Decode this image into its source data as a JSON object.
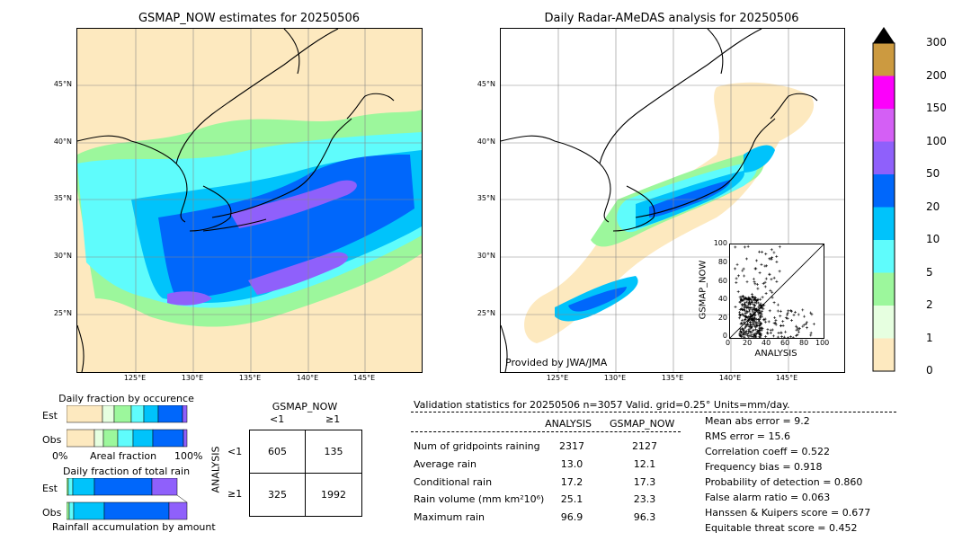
{
  "left_map": {
    "title": "GSMAP_NOW estimates for 20250506",
    "lat_labels": [
      "45°N",
      "40°N",
      "35°N",
      "30°N",
      "25°N"
    ],
    "lon_labels": [
      "125°E",
      "130°E",
      "135°E",
      "140°E",
      "145°E"
    ]
  },
  "right_map": {
    "title": "Daily Radar-AMeDAS analysis for 20250506",
    "lat_labels": [
      "45°N",
      "40°N",
      "35°N",
      "30°N",
      "25°N"
    ],
    "lon_labels": [
      "125°E",
      "130°E",
      "135°E",
      "140°E",
      "145°E"
    ],
    "credit": "Provided by JWA/JMA"
  },
  "colorbar": {
    "labels": [
      "0",
      "1",
      "2",
      "5",
      "10",
      "20",
      "50",
      "100",
      "150",
      "200",
      "300"
    ],
    "colors": [
      "#fde9bf",
      "#e6ffe0",
      "#9cf79c",
      "#5ffcfc",
      "#00c3fb",
      "#0067fb",
      "#8f60fb",
      "#d45ff5",
      "#fc00fb",
      "#cc9a40"
    ]
  },
  "scatter_inset": {
    "xlabel": "ANALYSIS",
    "ylabel": "GSMAP_NOW",
    "ticks": [
      "0",
      "20",
      "40",
      "60",
      "80",
      "100"
    ]
  },
  "fraction_occurrence": {
    "title": "Daily fraction by occurence",
    "row_labels": [
      "Est",
      "Obs"
    ],
    "axis_left": "0%",
    "axis_mid": "Areal fraction",
    "axis_right": "100%"
  },
  "fraction_total": {
    "title": "Daily fraction of total rain",
    "row_labels": [
      "Est",
      "Obs"
    ],
    "footer": "Rainfall accumulation by amount"
  },
  "contingency": {
    "col_title": "GSMAP_NOW",
    "row_title": "ANALYSIS",
    "col_labels": [
      "<1",
      "≥1"
    ],
    "row_labels": [
      "<1",
      "≥1"
    ],
    "cells": [
      "605",
      "135",
      "325",
      "1992"
    ]
  },
  "validation": {
    "header": "Validation statistics for 20250506  n=3057 Valid. grid=0.25° Units=mm/day.",
    "col_analysis": "ANALYSIS",
    "col_gsmap": "GSMAP_NOW",
    "rows": [
      {
        "label": "Num of gridpoints raining",
        "analysis": "2317",
        "gsmap": "2127"
      },
      {
        "label": "Average rain",
        "analysis": "13.0",
        "gsmap": "12.1"
      },
      {
        "label": "Conditional rain",
        "analysis": "17.2",
        "gsmap": "17.3"
      },
      {
        "label": "Rain volume (mm km²10⁶)",
        "analysis": "25.1",
        "gsmap": "23.3"
      },
      {
        "label": "Maximum rain",
        "analysis": "96.9",
        "gsmap": "96.3"
      }
    ],
    "scores": [
      "Mean abs error =    9.2",
      "RMS error =   15.6",
      "Correlation coeff =  0.522",
      "Frequency bias =  0.918",
      "Probability of detection =  0.860",
      "False alarm ratio =  0.063",
      "Hanssen & Kuipers score =  0.677",
      "Equitable threat score =  0.452"
    ]
  }
}
